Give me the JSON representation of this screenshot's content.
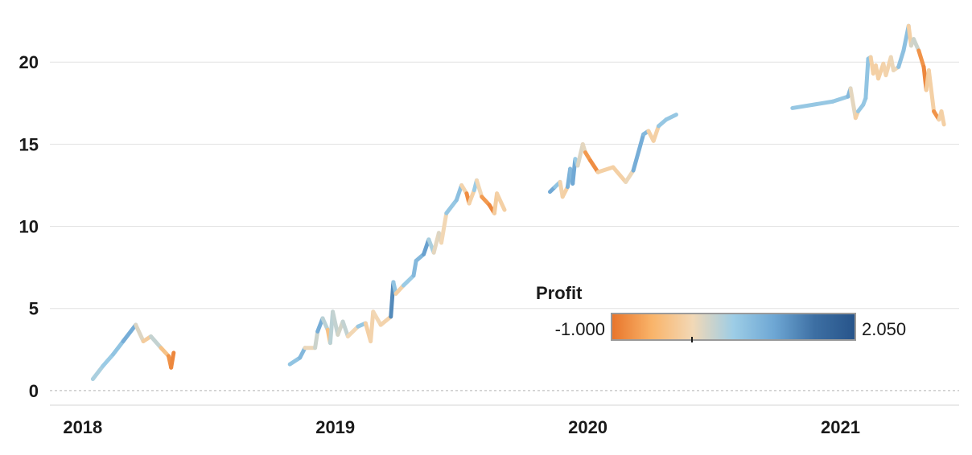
{
  "chart_data": {
    "type": "line",
    "title": "",
    "xlabel": "",
    "ylabel": "",
    "x_tick_labels": [
      "2018",
      "2019",
      "2020",
      "2021"
    ],
    "y_ticks": [
      0,
      5,
      10,
      15,
      20
    ],
    "ylim": [
      -0.3,
      22.8
    ],
    "xlim": [
      2017.87,
      2021.47
    ],
    "grid": true,
    "legend": {
      "title": "Profit",
      "min_label": "-1.000",
      "max_label": "2.050",
      "min": -1.0,
      "max": 2.05,
      "placement": "bottom-right",
      "colors": [
        "#e8742a",
        "#f9b46a",
        "#f2d8b6",
        "#9dcde6",
        "#6ea7d4",
        "#3d6fa3",
        "#27548a"
      ]
    },
    "series": [
      {
        "points": [
          [
            2018.04,
            0.7,
            0.4
          ],
          [
            2018.08,
            1.5,
            0.5
          ],
          [
            2018.12,
            2.2,
            0.6
          ],
          [
            2018.16,
            3.0,
            0.7
          ],
          [
            2018.21,
            4.0,
            1.2
          ],
          [
            2018.24,
            3.0,
            -0.9
          ],
          [
            2018.27,
            3.3,
            0.6
          ],
          [
            2018.31,
            2.6,
            0.0
          ],
          [
            2018.34,
            2.1,
            -0.6
          ],
          [
            2018.35,
            1.4,
            -0.9
          ],
          [
            2018.36,
            2.3,
            -0.8
          ]
        ]
      },
      {
        "points": [
          [
            2018.82,
            1.6,
            0.6
          ],
          [
            2018.86,
            2.0,
            0.7
          ],
          [
            2018.88,
            2.6,
            0.9
          ],
          [
            2018.92,
            2.6,
            -0.8
          ],
          [
            2018.93,
            3.6,
            1.3
          ],
          [
            2018.95,
            4.4,
            0.6
          ],
          [
            2018.97,
            3.7,
            0.1
          ],
          [
            2018.98,
            2.9,
            -0.7
          ],
          [
            2018.99,
            4.8,
            1.4
          ],
          [
            2019.01,
            3.4,
            -0.8
          ],
          [
            2019.03,
            4.2,
            1.2
          ],
          [
            2019.05,
            3.3,
            -0.6
          ],
          [
            2019.09,
            3.9,
            0.6
          ],
          [
            2019.12,
            4.1,
            0.6
          ],
          [
            2019.14,
            3.0,
            -0.8
          ],
          [
            2019.15,
            4.8,
            0.7
          ],
          [
            2019.18,
            4.0,
            -0.7
          ],
          [
            2019.22,
            4.5,
            0.6
          ],
          [
            2019.23,
            6.6,
            2.0
          ],
          [
            2019.24,
            5.9,
            -0.7
          ],
          [
            2019.27,
            6.4,
            0.5
          ],
          [
            2019.31,
            7.0,
            0.6
          ],
          [
            2019.32,
            7.9,
            1.0
          ],
          [
            2019.35,
            8.3,
            0.6
          ],
          [
            2019.37,
            9.2,
            1.6
          ],
          [
            2019.39,
            8.4,
            -0.7
          ],
          [
            2019.41,
            9.6,
            0.9
          ],
          [
            2019.42,
            9.0,
            -0.6
          ],
          [
            2019.44,
            10.8,
            0.6
          ],
          [
            2019.48,
            11.6,
            0.6
          ],
          [
            2019.5,
            12.5,
            0.8
          ],
          [
            2019.52,
            12.0,
            -0.9
          ],
          [
            2019.53,
            11.4,
            -0.7
          ],
          [
            2019.55,
            12.2,
            0.5
          ],
          [
            2019.56,
            12.8,
            0.6
          ],
          [
            2019.58,
            11.8,
            -0.6
          ],
          [
            2019.61,
            11.3,
            -0.8
          ],
          [
            2019.63,
            10.8,
            -0.9
          ],
          [
            2019.64,
            12.0,
            0.6
          ],
          [
            2019.67,
            11.0,
            -0.8
          ]
        ]
      },
      {
        "points": [
          [
            2019.85,
            12.1,
            1.4
          ],
          [
            2019.87,
            12.4,
            0.6
          ],
          [
            2019.89,
            12.7,
            0.7
          ],
          [
            2019.9,
            11.8,
            -0.8
          ],
          [
            2019.92,
            12.4,
            0.6
          ],
          [
            2019.93,
            13.5,
            1.2
          ],
          [
            2019.94,
            12.6,
            0.4
          ],
          [
            2019.95,
            14.1,
            1.6
          ],
          [
            2019.96,
            13.7,
            -0.5
          ],
          [
            2019.98,
            15.0,
            0.8
          ],
          [
            2019.99,
            14.5,
            -0.6
          ],
          [
            2020.01,
            14.0,
            -0.8
          ],
          [
            2020.04,
            13.3,
            -0.8
          ],
          [
            2020.1,
            13.6,
            0.6
          ],
          [
            2020.15,
            12.7,
            -0.8
          ],
          [
            2020.18,
            13.4,
            0.9
          ],
          [
            2020.22,
            15.6,
            1.0
          ],
          [
            2020.24,
            15.8,
            0.6
          ],
          [
            2020.26,
            15.2,
            -0.8
          ],
          [
            2020.28,
            16.1,
            0.6
          ],
          [
            2020.31,
            16.5,
            0.6
          ],
          [
            2020.35,
            16.8,
            0.6
          ]
        ]
      },
      {
        "points": [
          [
            2020.81,
            17.2,
            0.6
          ],
          [
            2020.97,
            17.6,
            0.6
          ],
          [
            2021.03,
            17.9,
            0.6
          ],
          [
            2021.04,
            18.4,
            1.0
          ],
          [
            2021.06,
            16.6,
            -0.8
          ],
          [
            2021.07,
            17.0,
            0.6
          ],
          [
            2021.09,
            17.4,
            0.6
          ],
          [
            2021.1,
            17.8,
            0.6
          ],
          [
            2021.11,
            20.2,
            0.7
          ],
          [
            2021.12,
            20.3,
            0.6
          ],
          [
            2021.13,
            19.3,
            -0.8
          ],
          [
            2021.14,
            19.8,
            0.6
          ],
          [
            2021.15,
            19.0,
            -0.8
          ],
          [
            2021.17,
            19.9,
            0.6
          ],
          [
            2021.18,
            19.2,
            -0.7
          ],
          [
            2021.2,
            20.3,
            0.6
          ],
          [
            2021.21,
            19.5,
            -0.5
          ],
          [
            2021.23,
            19.7,
            0.6
          ],
          [
            2021.25,
            20.7,
            0.8
          ],
          [
            2021.27,
            22.2,
            0.6
          ],
          [
            2021.28,
            21.0,
            -0.8
          ],
          [
            2021.29,
            21.4,
            1.2
          ],
          [
            2021.31,
            20.7,
            -0.7
          ],
          [
            2021.33,
            19.7,
            -0.8
          ],
          [
            2021.34,
            18.3,
            -0.9
          ],
          [
            2021.35,
            19.5,
            0.6
          ],
          [
            2021.37,
            17.0,
            -0.8
          ],
          [
            2021.39,
            16.5,
            -0.7
          ],
          [
            2021.4,
            17.0,
            0.6
          ],
          [
            2021.41,
            16.2,
            -0.8
          ]
        ]
      }
    ]
  }
}
